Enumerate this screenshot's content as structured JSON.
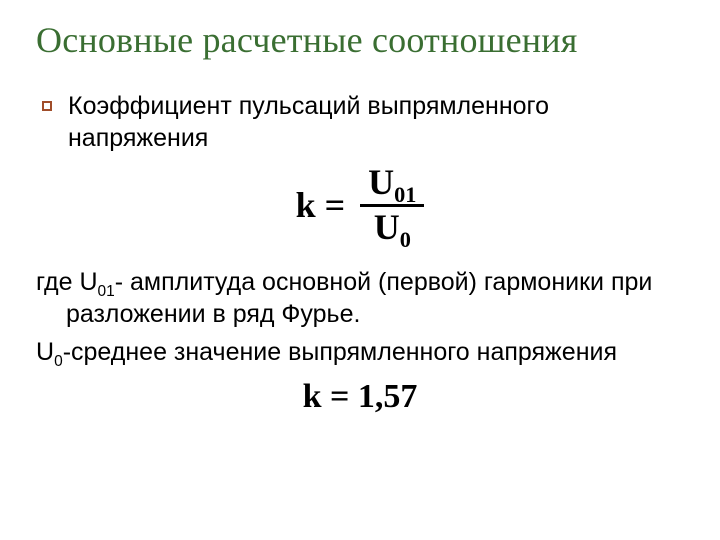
{
  "colors": {
    "title": "#3a6e32",
    "body": "#000000",
    "bullet_border": "#a04d2a",
    "formula": "#000000",
    "frac_bar": "#000000",
    "background": "#ffffff"
  },
  "fontsizes": {
    "title_pt": 27,
    "body_pt": 19,
    "formula_pt": 27,
    "formula2_pt": 26
  },
  "title": "Основные расчетные соотношения",
  "bullet": {
    "text": "Коэффициент пульсаций выпрямленного напряжения"
  },
  "formula1": {
    "lhs": "k =",
    "numerator_base": "U",
    "numerator_sub": "01",
    "denominator_base": "U",
    "denominator_sub": "0"
  },
  "explain1": {
    "prefix": "где ",
    "sym1_base": "U",
    "sym1_sub": "01",
    "rest": "- амплитуда основной (первой) гармоники при разложении в ряд Фурье."
  },
  "explain2": {
    "sym_base": "U",
    "sym_sub": "0",
    "rest": "-среднее значение выпрямленного напряжения"
  },
  "formula2": {
    "text": "k = 1,57"
  }
}
